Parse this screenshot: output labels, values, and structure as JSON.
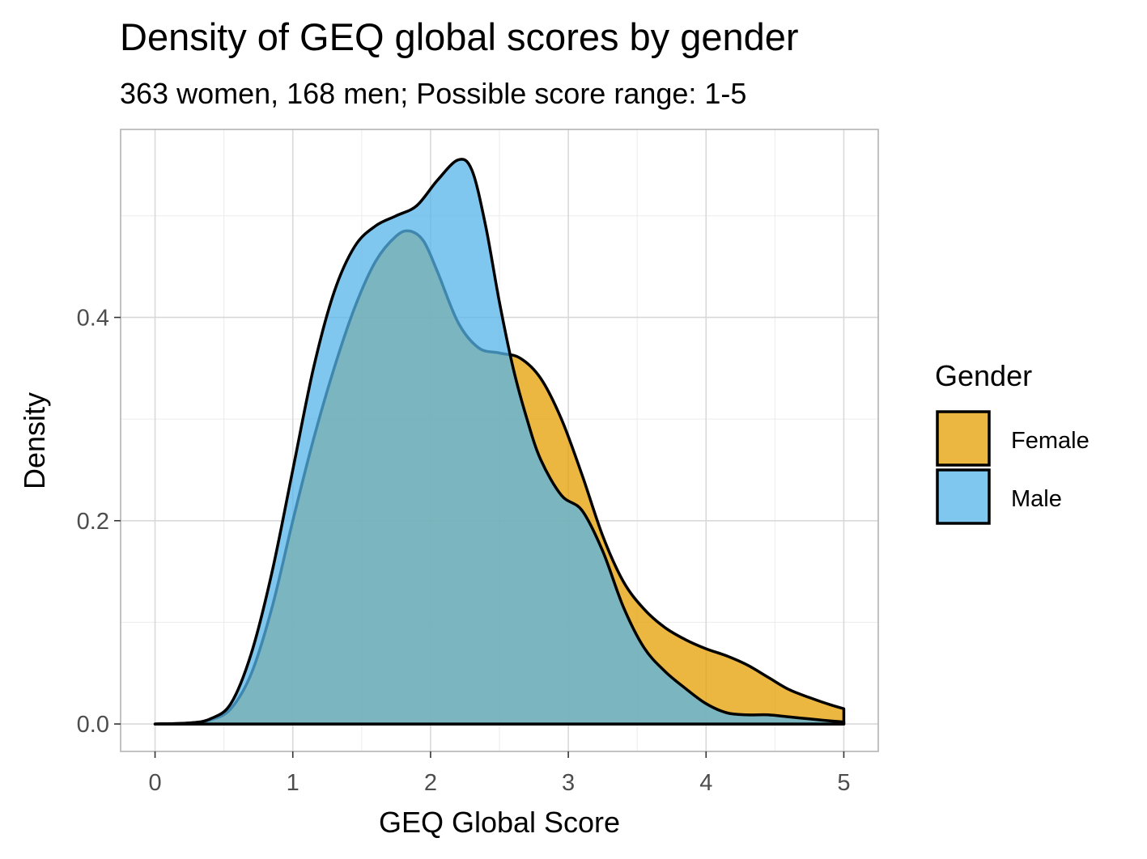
{
  "chart_data": {
    "type": "area",
    "title": "Density of GEQ global scores by gender",
    "subtitle": "363 women, 168 men; Possible score range: 1-5",
    "xlabel": "GEQ Global Score",
    "ylabel": "Density",
    "xlim": [
      -0.25,
      5.25
    ],
    "ylim": [
      -0.027,
      0.585
    ],
    "x_ticks": [
      0,
      1,
      2,
      3,
      4,
      5
    ],
    "x_tick_labels": [
      "0",
      "1",
      "2",
      "3",
      "4",
      "5"
    ],
    "y_ticks": [
      0.0,
      0.2,
      0.4
    ],
    "y_tick_labels": [
      "0.0",
      "0.2",
      "0.4"
    ],
    "grid": true,
    "legend": {
      "title": "Gender",
      "position": "right"
    },
    "series": [
      {
        "name": "Female",
        "color": "#E69F00",
        "x": [
          0,
          0.25,
          0.4,
          0.55,
          0.7,
          0.85,
          1.0,
          1.15,
          1.3,
          1.45,
          1.6,
          1.75,
          1.85,
          1.95,
          2.05,
          2.2,
          2.35,
          2.5,
          2.65,
          2.8,
          2.95,
          3.1,
          3.25,
          3.4,
          3.55,
          3.7,
          3.85,
          4.0,
          4.15,
          4.3,
          4.45,
          4.6,
          4.75,
          4.9,
          5.0
        ],
        "y": [
          0.0,
          0.001,
          0.004,
          0.015,
          0.05,
          0.115,
          0.2,
          0.28,
          0.35,
          0.41,
          0.455,
          0.48,
          0.485,
          0.475,
          0.445,
          0.395,
          0.37,
          0.365,
          0.36,
          0.34,
          0.3,
          0.245,
          0.185,
          0.14,
          0.113,
          0.095,
          0.083,
          0.074,
          0.067,
          0.058,
          0.046,
          0.034,
          0.026,
          0.019,
          0.015
        ]
      },
      {
        "name": "Male",
        "color": "#56B4E9",
        "x": [
          0,
          0.25,
          0.4,
          0.55,
          0.7,
          0.85,
          1.0,
          1.15,
          1.3,
          1.45,
          1.6,
          1.75,
          1.9,
          2.05,
          2.2,
          2.3,
          2.4,
          2.5,
          2.6,
          2.7,
          2.8,
          2.95,
          3.1,
          3.25,
          3.4,
          3.55,
          3.7,
          3.85,
          4.0,
          4.15,
          4.3,
          4.45,
          4.6,
          4.75,
          4.9,
          5.0
        ],
        "y": [
          0.0,
          0.001,
          0.005,
          0.02,
          0.07,
          0.15,
          0.25,
          0.35,
          0.425,
          0.47,
          0.49,
          0.5,
          0.51,
          0.535,
          0.555,
          0.545,
          0.49,
          0.415,
          0.35,
          0.3,
          0.26,
          0.225,
          0.21,
          0.17,
          0.115,
          0.075,
          0.052,
          0.035,
          0.02,
          0.011,
          0.009,
          0.009,
          0.007,
          0.005,
          0.003,
          0.002
        ]
      }
    ]
  }
}
